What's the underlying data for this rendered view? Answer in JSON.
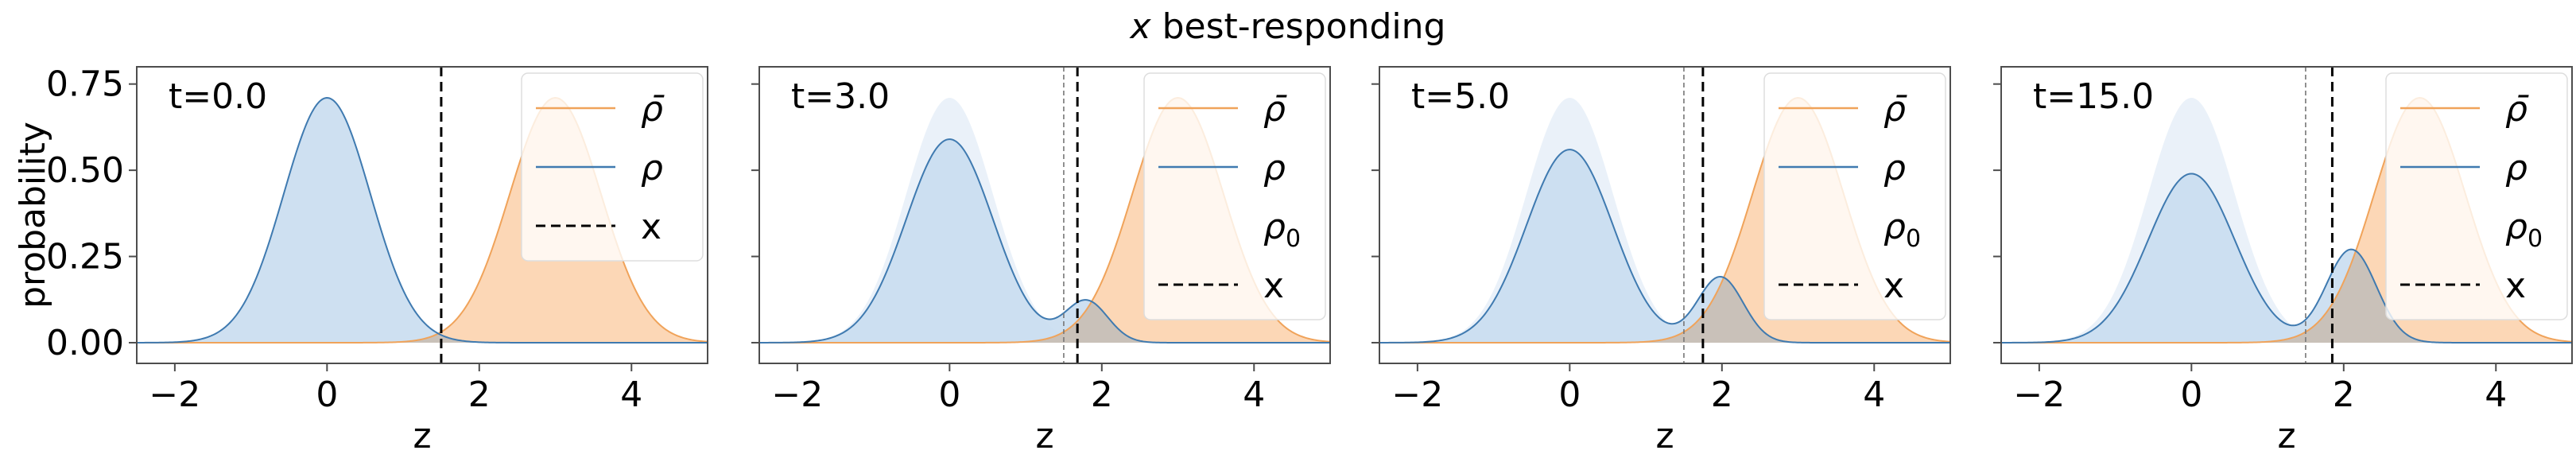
{
  "figure_title_var": "x",
  "figure_title_rest": " best-responding",
  "chart_data": [
    {
      "type": "area",
      "annotation": "t=0.0",
      "xlabel": "z",
      "ylabel": "probability",
      "xlim": [
        -2.5,
        5.0
      ],
      "ylim": [
        -0.06,
        0.8
      ],
      "xticks": [
        -2,
        0,
        2,
        4
      ],
      "yticks": [
        0.0,
        0.25,
        0.5,
        0.75
      ],
      "ytick_labels": [
        "0.00",
        "0.25",
        "0.50",
        "0.75"
      ],
      "show_yticklabels": true,
      "legend_position": "top-right",
      "legend": [
        {
          "label": "ρ̄",
          "kind": "orange_line"
        },
        {
          "label": "ρ",
          "kind": "blue_line"
        },
        {
          "label": "x",
          "kind": "dashed"
        }
      ],
      "threshold_x": 1.5,
      "rho0_threshold_x": null,
      "series": {
        "rho_bar": {
          "components": [
            {
              "mu": 3.0,
              "sigma": 0.6,
              "amp": 0.71
            }
          ]
        },
        "rho": {
          "components": [
            {
              "mu": 0.0,
              "sigma": 0.57,
              "amp": 0.71
            }
          ]
        },
        "rho0": null
      }
    },
    {
      "type": "area",
      "annotation": "t=3.0",
      "xlabel": "z",
      "ylabel": "",
      "xlim": [
        -2.5,
        5.0
      ],
      "ylim": [
        -0.06,
        0.8
      ],
      "xticks": [
        -2,
        0,
        2,
        4
      ],
      "yticks": [
        0.0,
        0.25,
        0.5,
        0.75
      ],
      "ytick_labels": [
        "",
        "",
        "",
        ""
      ],
      "show_yticklabels": false,
      "legend_position": "top-right",
      "legend": [
        {
          "label": "ρ̄",
          "kind": "orange_line"
        },
        {
          "label": "ρ",
          "kind": "blue_line"
        },
        {
          "label": "ρ0",
          "kind": "faint"
        },
        {
          "label": "x",
          "kind": "dashed"
        }
      ],
      "threshold_x": 1.68,
      "rho0_threshold_x": 1.5,
      "series": {
        "rho_bar": {
          "components": [
            {
              "mu": 3.0,
              "sigma": 0.6,
              "amp": 0.71
            }
          ]
        },
        "rho": {
          "components": [
            {
              "mu": 0.0,
              "sigma": 0.57,
              "amp": 0.59
            },
            {
              "mu": 1.8,
              "sigma": 0.28,
              "amp": 0.12
            }
          ]
        },
        "rho0": {
          "components": [
            {
              "mu": 0.0,
              "sigma": 0.57,
              "amp": 0.71
            }
          ]
        }
      }
    },
    {
      "type": "area",
      "annotation": "t=5.0",
      "xlabel": "z",
      "ylabel": "",
      "xlim": [
        -2.5,
        5.0
      ],
      "ylim": [
        -0.06,
        0.8
      ],
      "xticks": [
        -2,
        0,
        2,
        4
      ],
      "yticks": [
        0.0,
        0.25,
        0.5,
        0.75
      ],
      "ytick_labels": [
        "",
        "",
        "",
        ""
      ],
      "show_yticklabels": false,
      "legend_position": "top-right",
      "legend": [
        {
          "label": "ρ̄",
          "kind": "orange_line"
        },
        {
          "label": "ρ",
          "kind": "blue_line"
        },
        {
          "label": "ρ0",
          "kind": "faint"
        },
        {
          "label": "x",
          "kind": "dashed"
        }
      ],
      "threshold_x": 1.75,
      "rho0_threshold_x": 1.5,
      "series": {
        "rho_bar": {
          "components": [
            {
              "mu": 3.0,
              "sigma": 0.6,
              "amp": 0.71
            }
          ]
        },
        "rho": {
          "components": [
            {
              "mu": 0.0,
              "sigma": 0.57,
              "amp": 0.56
            },
            {
              "mu": 1.98,
              "sigma": 0.3,
              "amp": 0.19
            }
          ]
        },
        "rho0": {
          "components": [
            {
              "mu": 0.0,
              "sigma": 0.57,
              "amp": 0.71
            }
          ]
        }
      }
    },
    {
      "type": "area",
      "annotation": "t=15.0",
      "xlabel": "z",
      "ylabel": "",
      "xlim": [
        -2.5,
        5.0
      ],
      "ylim": [
        -0.06,
        0.8
      ],
      "xticks": [
        -2,
        0,
        2,
        4
      ],
      "yticks": [
        0.0,
        0.25,
        0.5,
        0.75
      ],
      "ytick_labels": [
        "",
        "",
        "",
        ""
      ],
      "show_yticklabels": false,
      "legend_position": "top-right",
      "legend": [
        {
          "label": "ρ̄",
          "kind": "orange_line"
        },
        {
          "label": "ρ",
          "kind": "blue_line"
        },
        {
          "label": "ρ0",
          "kind": "faint"
        },
        {
          "label": "x",
          "kind": "dashed"
        }
      ],
      "threshold_x": 1.85,
      "rho0_threshold_x": 1.5,
      "series": {
        "rho_bar": {
          "components": [
            {
              "mu": 3.0,
              "sigma": 0.6,
              "amp": 0.71
            }
          ]
        },
        "rho": {
          "components": [
            {
              "mu": 0.0,
              "sigma": 0.57,
              "amp": 0.49
            },
            {
              "mu": 2.1,
              "sigma": 0.33,
              "amp": 0.27
            }
          ]
        },
        "rho0": {
          "components": [
            {
              "mu": 0.0,
              "sigma": 0.57,
              "amp": 0.71
            }
          ]
        }
      }
    }
  ],
  "colors": {
    "rho_fill": "#c9ddef",
    "rho_line": "#3f7ab0",
    "rho_bar_fill": "#fcd3ae",
    "rho_bar_line": "#f0a35a",
    "rho0_fill": "#e6eff8",
    "overlap_fill": "#c7b8a8",
    "threshold": "#000000",
    "rho0_threshold": "#777777",
    "axis": "#4d4d4d"
  }
}
